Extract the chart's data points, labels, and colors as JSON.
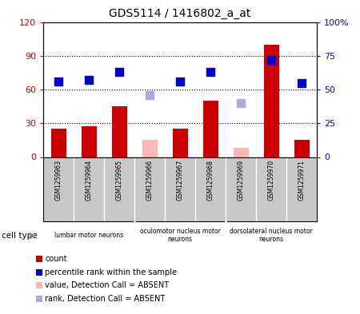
{
  "title": "GDS5114 / 1416802_a_at",
  "samples": [
    "GSM1259963",
    "GSM1259964",
    "GSM1259965",
    "GSM1259966",
    "GSM1259967",
    "GSM1259968",
    "GSM1259969",
    "GSM1259970",
    "GSM1259971"
  ],
  "count_values": [
    25,
    27,
    45,
    null,
    25,
    50,
    null,
    100,
    15
  ],
  "count_absent": [
    null,
    null,
    null,
    15,
    null,
    null,
    8,
    null,
    null
  ],
  "rank_values": [
    56,
    57,
    63,
    null,
    56,
    63,
    null,
    72,
    55
  ],
  "rank_absent": [
    null,
    null,
    null,
    46,
    null,
    null,
    40,
    null,
    null
  ],
  "left_ylim": [
    0,
    120
  ],
  "right_ylim": [
    0,
    100
  ],
  "left_yticks": [
    0,
    30,
    60,
    90,
    120
  ],
  "left_yticklabels": [
    "0",
    "30",
    "60",
    "90",
    "120"
  ],
  "right_yticks": [
    0,
    25,
    50,
    75,
    100
  ],
  "right_yticklabels": [
    "0",
    "25",
    "50",
    "75",
    "100%"
  ],
  "bar_color": "#cc0000",
  "bar_absent_color": "#ffb6b6",
  "rank_color": "#0000cc",
  "rank_absent_color": "#aaaadd",
  "cell_type_groups": [
    {
      "label": "lumbar motor neurons",
      "start": 0,
      "end": 3
    },
    {
      "label": "oculomotor nucleus motor\nneurons",
      "start": 3,
      "end": 6
    },
    {
      "label": "dorsolateral nucleus motor\nneurons",
      "start": 6,
      "end": 9
    }
  ],
  "cell_type_bg": "#66ee66",
  "tick_area_bg": "#c8c8c8",
  "legend_items": [
    {
      "label": "count",
      "color": "#cc0000"
    },
    {
      "label": "percentile rank within the sample",
      "color": "#0000cc"
    },
    {
      "label": "value, Detection Call = ABSENT",
      "color": "#ffb6b6"
    },
    {
      "label": "rank, Detection Call = ABSENT",
      "color": "#aaaadd"
    }
  ],
  "bar_width": 0.5,
  "marker_size": 7
}
